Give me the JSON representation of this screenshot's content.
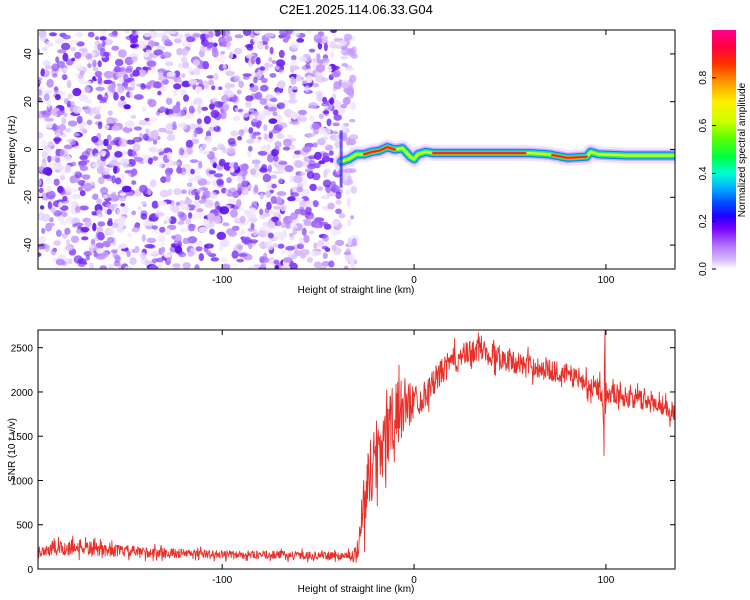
{
  "title": "C2E1.2025.114.06.33.G04",
  "chart_data": [
    {
      "type": "heatmap",
      "xlabel": "Height of straight line (km)",
      "ylabel": "Frequency (Hz)",
      "xlim": [
        -196,
        136
      ],
      "ylim": [
        -50,
        50
      ],
      "xticks": [
        -100,
        0,
        100
      ],
      "yticks": [
        -40,
        -20,
        0,
        20,
        40
      ],
      "noise_region_x": [
        -196,
        -35
      ],
      "signal_track": {
        "x": [
          -38,
          -34,
          -30,
          -26,
          -22,
          -18,
          -14,
          -10,
          -6,
          -2,
          0,
          2,
          6,
          10,
          20,
          40,
          60,
          70,
          80,
          90,
          92,
          96,
          110,
          136
        ],
        "freq": [
          -5,
          -4,
          -2,
          -2,
          -1,
          -0.5,
          1,
          0,
          0.5,
          -3,
          -4,
          -2,
          -1,
          -1.5,
          -1.5,
          -1.5,
          -1.5,
          -2,
          -3.5,
          -3,
          -1,
          -2,
          -2.5,
          -2.5
        ]
      },
      "colorbar": {
        "label": "Normalized spectral amplitude",
        "range": [
          0,
          1
        ],
        "ticks": [
          "0.0",
          "0.2",
          "0.4",
          "0.6",
          "0.8"
        ]
      }
    },
    {
      "type": "line",
      "xlabel": "Height of straight line (km)",
      "ylabel": "SNR (10 * v/v)",
      "xlim": [
        -196,
        136
      ],
      "ylim": [
        0,
        2700
      ],
      "xticks": [
        -100,
        0,
        100
      ],
      "yticks": [
        0,
        500,
        1000,
        1500,
        2000,
        2500
      ],
      "series": [
        {
          "name": "SNR",
          "color": "#e8302a",
          "x": [
            -196,
            -185,
            -175,
            -165,
            -150,
            -130,
            -110,
            -90,
            -70,
            -50,
            -40,
            -35,
            -30,
            -28,
            -25,
            -20,
            -15,
            -10,
            -5,
            0,
            5,
            10,
            15,
            20,
            25,
            30,
            35,
            40,
            45,
            50,
            60,
            70,
            80,
            90,
            95,
            98,
            99,
            100,
            102,
            110,
            120,
            130,
            136
          ],
          "baseline": [
            200,
            230,
            250,
            220,
            200,
            180,
            170,
            160,
            160,
            150,
            150,
            150,
            160,
            500,
            900,
            1300,
            1500,
            1700,
            1850,
            1900,
            1950,
            2100,
            2250,
            2350,
            2400,
            2450,
            2500,
            2420,
            2400,
            2350,
            2300,
            2250,
            2200,
            2100,
            2050,
            2000,
            1550,
            2000,
            2000,
            1950,
            1900,
            1850,
            1750
          ],
          "noise_amplitude": [
            90,
            120,
            110,
            90,
            80,
            70,
            60,
            55,
            55,
            55,
            55,
            60,
            120,
            300,
            500,
            550,
            550,
            500,
            400,
            250,
            200,
            200,
            180,
            180,
            180,
            180,
            180,
            180,
            170,
            160,
            150,
            150,
            150,
            150,
            150,
            150,
            150,
            150,
            150,
            140,
            140,
            140,
            140
          ],
          "spikes": [
            {
              "x": 99.5,
              "y": 2700
            },
            {
              "x": 99.2,
              "y": 2300
            },
            {
              "x": 99.0,
              "y": 1280
            }
          ]
        }
      ]
    }
  ]
}
